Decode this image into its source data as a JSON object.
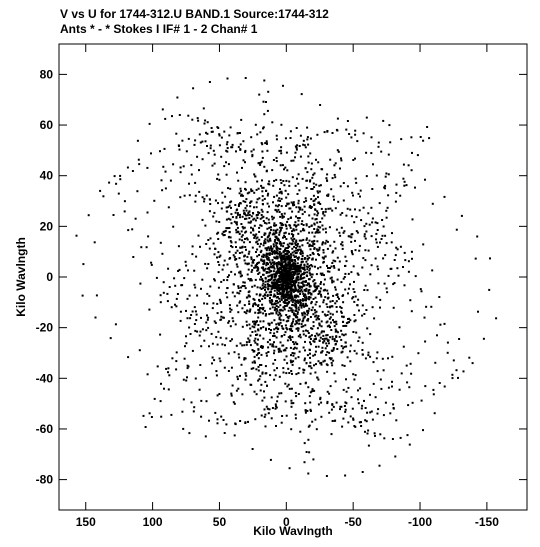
{
  "header": {
    "line1": "V vs U for 1744-312.U BAND.1   Source:1744-312",
    "line2": "Ants * - *     Stokes I  IF# 1 - 2   Chan# 1"
  },
  "chart_data": {
    "type": "scatter",
    "xlabel": "Kilo Wavlngth",
    "ylabel": "Kilo Wavlngth",
    "xlim": [
      170,
      -180
    ],
    "ylim": [
      -92,
      92
    ],
    "x_ticks": [
      150,
      100,
      50,
      0,
      -50,
      -100,
      -150
    ],
    "x_tick_labels": [
      "150",
      "100",
      "50",
      "0",
      "-50",
      "-100",
      "-150"
    ],
    "y_ticks": [
      80,
      60,
      40,
      20,
      0,
      -20,
      -40,
      -60,
      -80
    ],
    "y_tick_labels": [
      "80",
      "60",
      "40",
      "20",
      "0",
      "-20",
      "-40",
      "-60",
      "-80"
    ],
    "grid": false,
    "marker_color": "#000000",
    "points_note_free": true,
    "point_count": 2400,
    "tracks": [
      {
        "center": [
          0,
          0
        ],
        "max_u": 175,
        "max_v": 90
      }
    ]
  }
}
